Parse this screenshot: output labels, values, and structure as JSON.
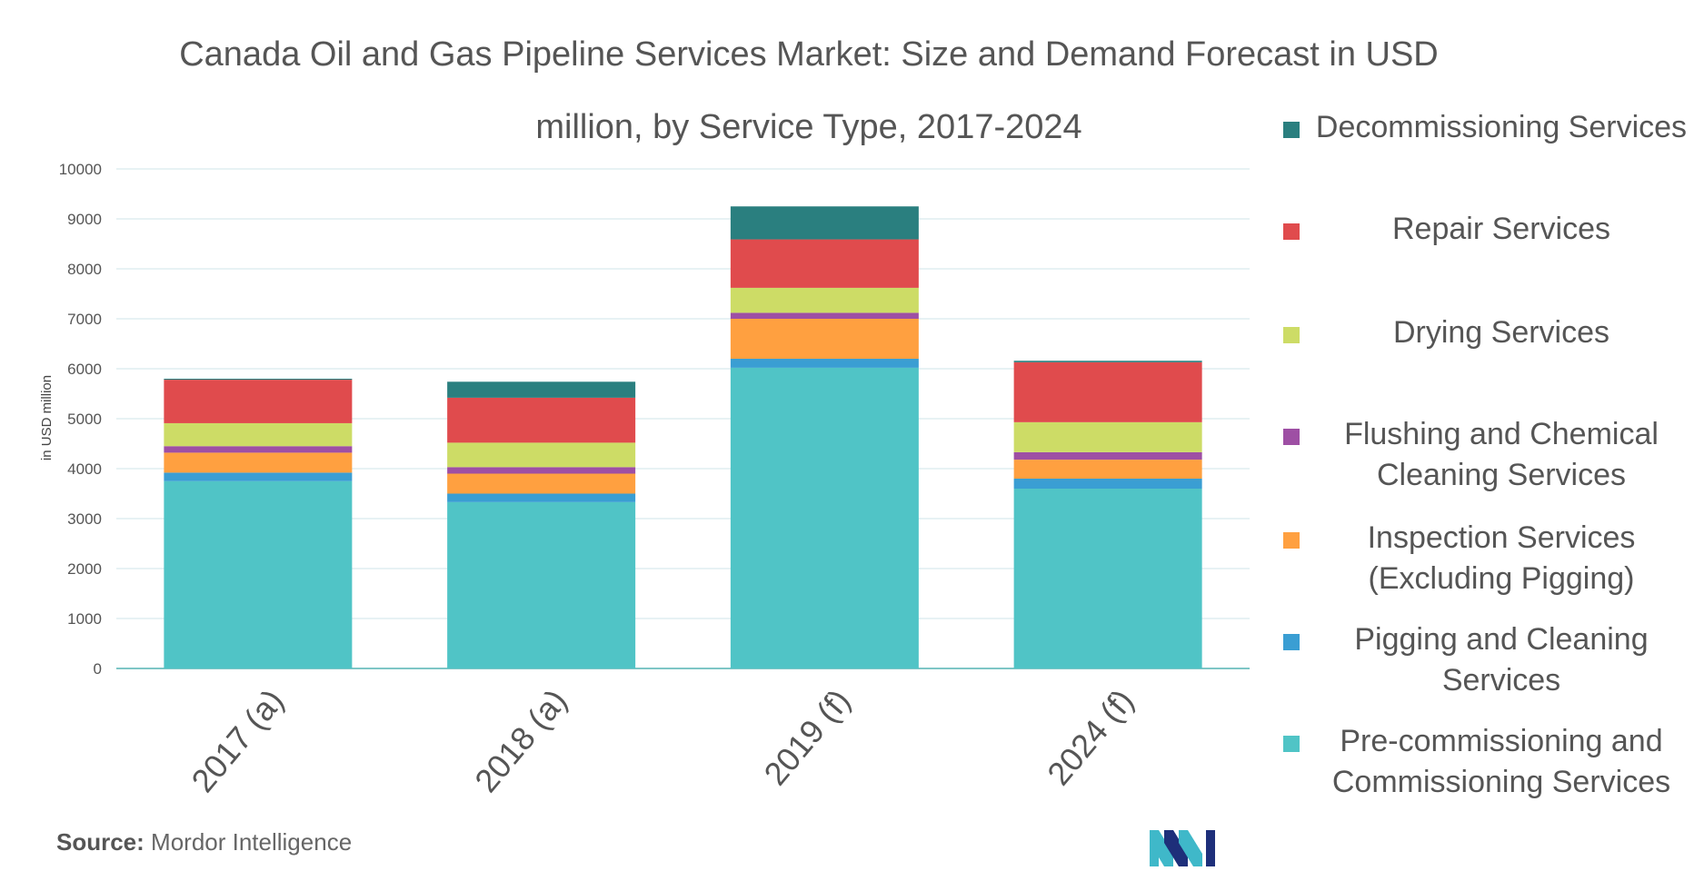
{
  "chart_data": {
    "type": "bar",
    "stacked": true,
    "title_line1": "Canada Oil and Gas Pipeline Services Market: Size and Demand Forecast in USD",
    "title_line2": "million, by Service Type, 2017-2024",
    "ylabel": "in USD million",
    "ylim": [
      0,
      10000
    ],
    "yticks": [
      "0",
      "1000",
      "2000",
      "3000",
      "4000",
      "5000",
      "6000",
      "7000",
      "8000",
      "9000",
      "10000"
    ],
    "categories": [
      "2017 (a)",
      "2018 (a)",
      "2019 (f)",
      "2024 (f)"
    ],
    "series": [
      {
        "name": "Pre-commissioning and Commissioning Services",
        "color": "#50c4c6",
        "values": [
          3750,
          3330,
          6020,
          3600
        ]
      },
      {
        "name": "Pigging and Cleaning Services",
        "color": "#3a9ed3",
        "values": [
          170,
          170,
          180,
          200
        ]
      },
      {
        "name": "Inspection Services (Excluding Pigging)",
        "color": "#ffa040",
        "values": [
          400,
          400,
          800,
          380
        ]
      },
      {
        "name": "Flushing and Chemical Cleaning Services",
        "color": "#9e4fa4",
        "values": [
          130,
          130,
          120,
          150
        ]
      },
      {
        "name": "Drying Services",
        "color": "#cddc66",
        "values": [
          460,
          490,
          500,
          600
        ]
      },
      {
        "name": "Repair Services",
        "color": "#e04b4d",
        "values": [
          870,
          900,
          970,
          1200
        ]
      },
      {
        "name": "Decommissioning Services",
        "color": "#2a7f7f",
        "values": [
          20,
          320,
          660,
          30
        ]
      }
    ],
    "grid": true,
    "legend_position": "right"
  },
  "legend": [
    {
      "line1": "Decommissioning Services",
      "line2": "",
      "color": "#2a7f7f"
    },
    {
      "line1": "Repair Services",
      "line2": "",
      "color": "#e04b4d"
    },
    {
      "line1": "Drying Services",
      "line2": "",
      "color": "#cddc66"
    },
    {
      "line1": "Flushing and Chemical",
      "line2": "Cleaning Services",
      "color": "#9e4fa4"
    },
    {
      "line1": "Inspection Services",
      "line2": "(Excluding Pigging)",
      "color": "#ffa040"
    },
    {
      "line1": "Pigging and Cleaning",
      "line2": "Services",
      "color": "#3a9ed3"
    },
    {
      "line1": "Pre-commissioning and",
      "line2": "Commissioning Services",
      "color": "#50c4c6"
    }
  ],
  "source": {
    "label": "Source:",
    "text": " Mordor Intelligence"
  },
  "logo": {
    "icon": "mordor-intelligence-logo-icon",
    "colors": [
      "#1e2f7a",
      "#3fb8c9"
    ]
  }
}
